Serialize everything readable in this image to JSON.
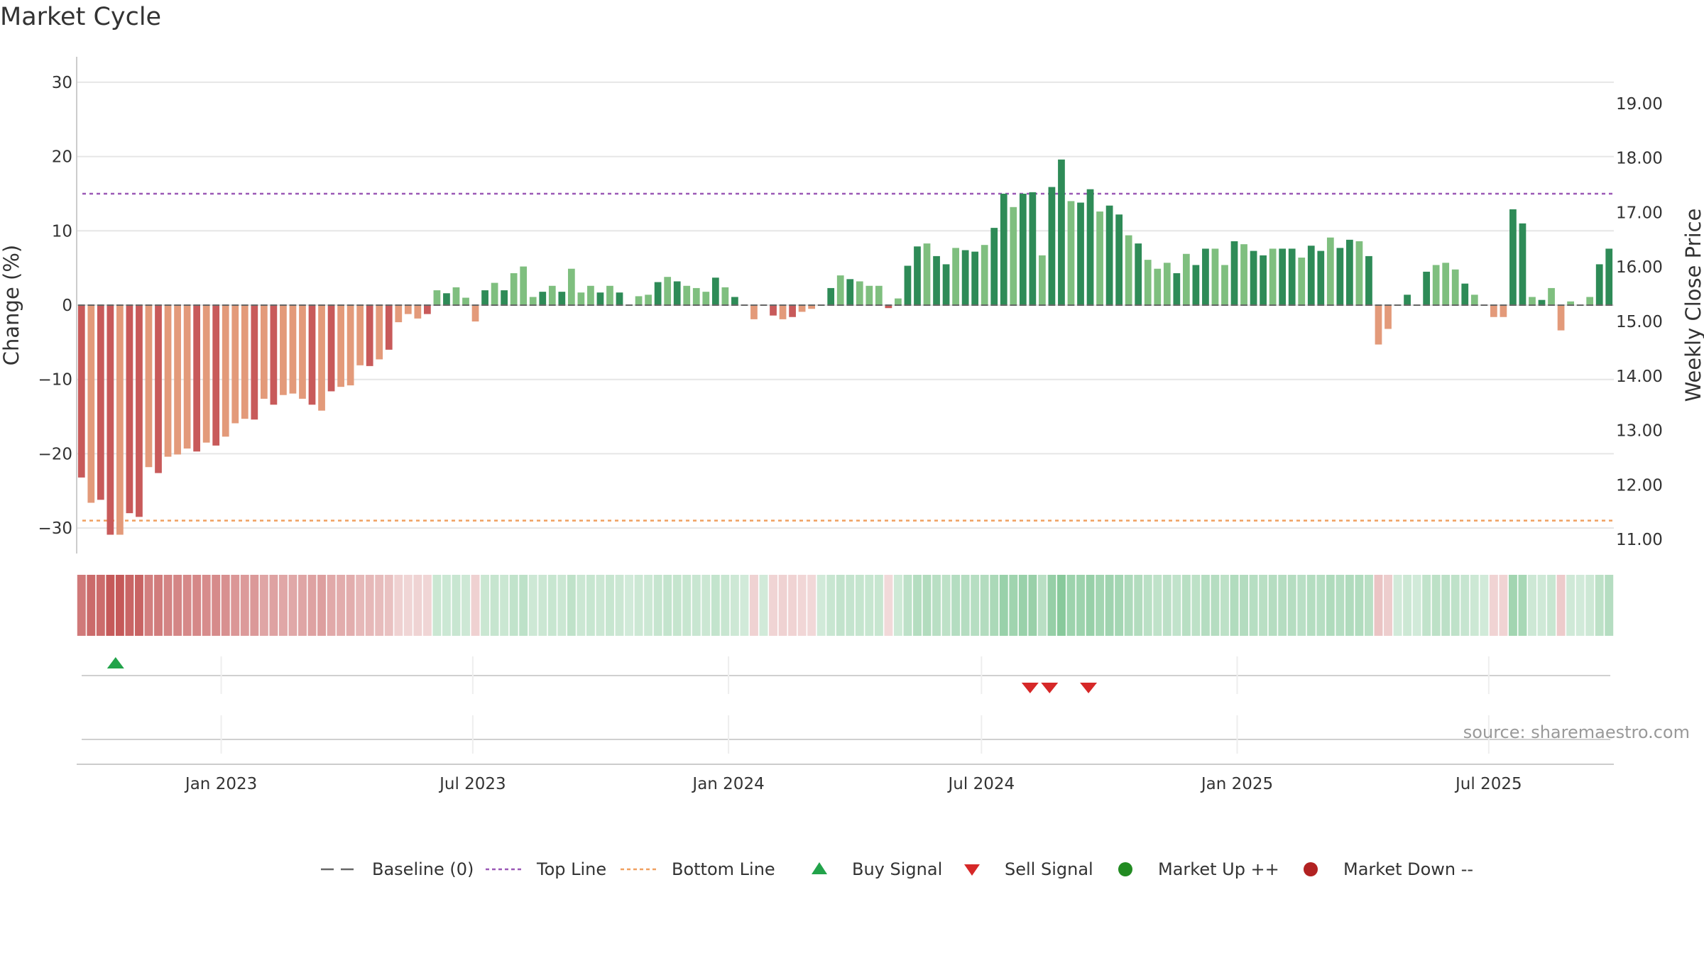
{
  "title": "Market Cycle",
  "source": "source: sharemaestro.com",
  "chart_data": {
    "type": "bar",
    "title": "Market Cycle",
    "ylabel_left": "Change (%)",
    "ylabel_right": "Weekly Close Price",
    "ylim": [
      -33,
      33
    ],
    "ylim_right": [
      10.4,
      19.8
    ],
    "yticks_left": [
      30,
      20,
      10,
      0,
      -10,
      -20,
      -30
    ],
    "ytick_labels_left": [
      "30",
      "20",
      "10",
      "0",
      "−10",
      "−20",
      "−30"
    ],
    "yticks_right": [
      19,
      18,
      17,
      16,
      15,
      14,
      13,
      12,
      11
    ],
    "ytick_labels_right": [
      "19.00",
      "18.00",
      "17.00",
      "16.00",
      "15.00",
      "14.00",
      "13.00",
      "12.00",
      "11.00"
    ],
    "x_start": "2022-09-19",
    "x_end": "2025-09-29",
    "x_ticks": [
      {
        "date": "2023-01-01",
        "label": "Jan 2023"
      },
      {
        "date": "2023-07-01",
        "label": "Jul 2023"
      },
      {
        "date": "2024-01-01",
        "label": "Jan 2024"
      },
      {
        "date": "2024-07-01",
        "label": "Jul 2024"
      },
      {
        "date": "2025-01-01",
        "label": "Jan 2025"
      },
      {
        "date": "2025-07-01",
        "label": "Jul 2025"
      }
    ],
    "baseline": 0,
    "top_line": 15,
    "bottom_line": -29,
    "colors": {
      "up_strong": "#2e8b57",
      "up_weak": "#7fbf7f",
      "down_strong": "#c85a5a",
      "down_weak": "#e39a7a",
      "top_line": "#9b59b6",
      "bottom_line": "#f0a060",
      "baseline": "#666666",
      "buy": "#22a34a",
      "sell": "#d62828",
      "market_up": "#228b22",
      "market_down": "#b22222"
    },
    "series": [
      {
        "values": [
          -23.2,
          -26.6,
          -26.2,
          -30.9,
          -30.9,
          -28.0,
          -28.5,
          -21.8,
          -22.6,
          -20.4,
          -20.1,
          -19.3,
          -19.7,
          -18.5,
          -18.9,
          -17.7,
          -15.9,
          -15.3,
          -15.4,
          -12.6,
          -13.4,
          -12.1,
          -11.9,
          -12.6,
          -13.4,
          -14.2,
          -11.6,
          -11.0,
          -10.8,
          -8.1,
          -8.2,
          -7.3,
          -6.0,
          -2.3,
          -1.2,
          -1.8,
          -1.2,
          2.0,
          1.6,
          2.4,
          1.0,
          -2.2,
          2.0,
          3.0,
          2.0,
          4.3,
          5.2,
          1.1,
          1.8,
          2.6,
          1.8,
          4.9,
          1.7,
          2.6,
          1.7,
          2.6,
          1.7,
          0,
          1.2,
          1.4,
          3.1,
          3.8,
          3.2,
          2.6,
          2.3,
          1.8,
          3.7,
          2.4,
          1.1,
          0,
          -1.9,
          0,
          -1.4,
          -1.9,
          -1.6,
          -0.9,
          -0.5,
          0,
          2.3,
          4.0,
          3.5,
          3.2,
          2.6,
          2.6,
          -0.4,
          0.9,
          5.3,
          7.9,
          8.3,
          6.6,
          5.5,
          7.7,
          7.4,
          7.2,
          8.1,
          10.4,
          15.0,
          13.2,
          15.0,
          15.2,
          6.7,
          15.9,
          19.6,
          14.0,
          13.8,
          15.6,
          12.6,
          13.4,
          12.2,
          9.4,
          8.3,
          6.1,
          4.9,
          5.7,
          4.3,
          6.9,
          5.4,
          7.6,
          7.6,
          5.4,
          8.6,
          8.2,
          7.3,
          6.7,
          7.6,
          7.6,
          7.6,
          6.4,
          8.0,
          7.3,
          9.1,
          7.7,
          8.8,
          8.6,
          6.6,
          -5.3,
          -3.2,
          0,
          1.4,
          0,
          4.5,
          5.4,
          5.7,
          4.8,
          2.9,
          1.4,
          0,
          -1.6,
          -1.6,
          12.9,
          11.0,
          1.1,
          0.7,
          2.3,
          -3.4,
          0.5,
          0,
          1.1,
          5.5,
          7.6
        ]
      }
    ],
    "signals": [
      {
        "type": "buy",
        "date": "2022-10-17"
      },
      {
        "type": "sell",
        "date": "2024-08-05"
      },
      {
        "type": "sell",
        "date": "2024-08-19"
      },
      {
        "type": "sell",
        "date": "2024-09-16"
      }
    ],
    "legend": [
      {
        "label": "Baseline (0)",
        "marker": "dash",
        "color": "#666666"
      },
      {
        "label": "Top Line",
        "marker": "dotted",
        "color": "#9b59b6"
      },
      {
        "label": "Bottom Line",
        "marker": "dotted",
        "color": "#f0a060"
      },
      {
        "label": "Buy Signal",
        "marker": "triangle-up",
        "color": "#22a34a"
      },
      {
        "label": "Sell Signal",
        "marker": "triangle-down",
        "color": "#d62828"
      },
      {
        "label": "Market Up ++",
        "marker": "circle",
        "color": "#228b22"
      },
      {
        "label": "Market Down --",
        "marker": "circle",
        "color": "#b22222"
      }
    ],
    "legend_position": "bottom",
    "grid": true
  }
}
